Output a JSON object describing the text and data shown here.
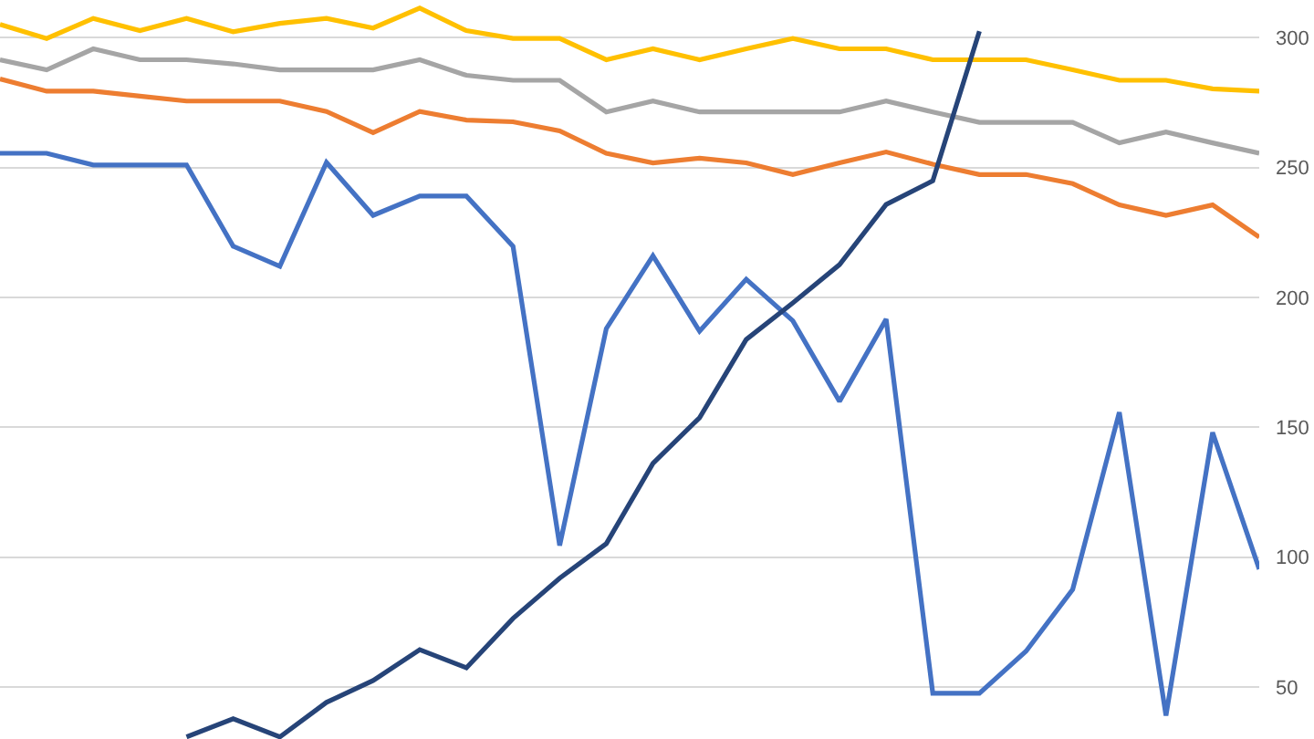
{
  "chart_data": {
    "type": "line",
    "categories": [
      null,
      null,
      null,
      null,
      null,
      null,
      null,
      null,
      null,
      null,
      null,
      null,
      null,
      null,
      null,
      null,
      null,
      null,
      null,
      null,
      null,
      null,
      null,
      null,
      null,
      null,
      null,
      null
    ],
    "series": [
      {
        "color": "#ffc000",
        "values": [
          305.1,
          299.7,
          307.4,
          302.7,
          307.4,
          302.3,
          305.5,
          307.4,
          303.7,
          311.4,
          302.7,
          299.7,
          299.7,
          291.5,
          295.7,
          291.5,
          295.7,
          299.7,
          295.7,
          295.7,
          291.5,
          291.5,
          291.5,
          287.6,
          283.6,
          283.6,
          280.3,
          279.4
        ]
      },
      {
        "color": "#a5a5a5",
        "values": [
          291.5,
          287.6,
          295.7,
          291.5,
          291.5,
          289.9,
          287.6,
          287.6,
          287.6,
          291.5,
          285.5,
          283.6,
          283.6,
          271.4,
          275.6,
          271.4,
          271.4,
          271.4,
          271.4,
          275.6,
          271.4,
          267.4,
          267.4,
          267.4,
          259.5,
          263.7,
          259.5,
          255.5
        ]
      },
      {
        "color": "#ed7d31",
        "values": [
          284.1,
          279.4,
          279.4,
          277.5,
          275.6,
          275.6,
          275.6,
          271.6,
          263.4,
          271.6,
          268.3,
          267.6,
          264.1,
          255.5,
          251.8,
          253.6,
          251.8,
          247.3,
          251.8,
          256,
          251.3,
          247.3,
          247.3,
          243.8,
          235.6,
          231.6,
          235.6,
          223.2
        ]
      },
      {
        "color": "#4472c4",
        "values": [
          255.5,
          255.5,
          251,
          251,
          251,
          219.7,
          212,
          252,
          231.6,
          239,
          239,
          219.7,
          104.5,
          188,
          216,
          187,
          207,
          191,
          160,
          191.6,
          47.6,
          47.6,
          63.8,
          87.6,
          155.8,
          39,
          148,
          95.4
        ]
      },
      {
        "color": "#264478",
        "values": [
          null,
          null,
          null,
          null,
          30.8,
          37.8,
          30.8,
          44.1,
          52.5,
          64.4,
          57.4,
          76.4,
          91.9,
          105.2,
          136.1,
          153.7,
          183.8,
          197.9,
          212.6,
          235.8,
          244.9,
          302.5,
          null,
          null,
          null,
          null,
          null,
          null
        ]
      }
    ],
    "ylim": [
      30,
      314.5
    ],
    "yticks": [
      50,
      100,
      150,
      200,
      250,
      300
    ],
    "grid": "y",
    "tick_labels": "y",
    "marker": "none",
    "line_style": "solid"
  }
}
